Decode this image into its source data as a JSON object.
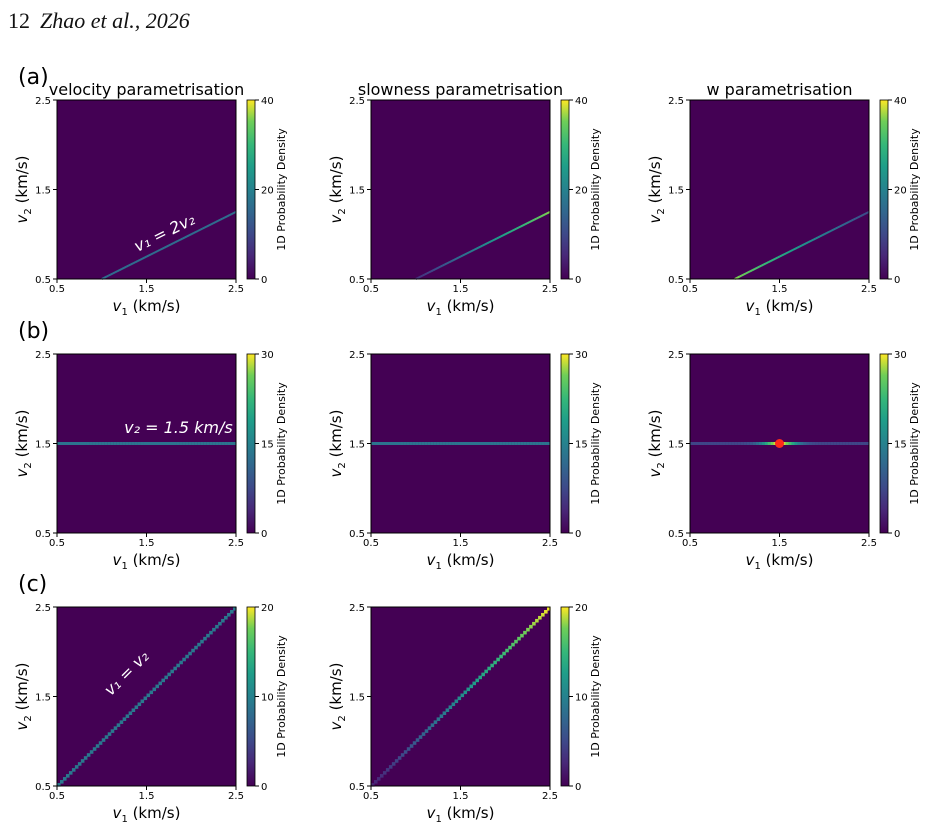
{
  "header": {
    "page_number": "12",
    "authors": "Zhao et al., 2026"
  },
  "row_labels": [
    "(a)",
    "(b)",
    "(c)"
  ],
  "columns": [
    "velocity parametrisation",
    "slowness parametrisation",
    "w parametrisation"
  ],
  "colors": {
    "background": "#440154",
    "viridis_low": "#440154",
    "viridis_high": "#fde725",
    "marker": "#ff2a1a"
  },
  "chart_data": [
    {
      "type": "heatmap",
      "panel": "a-velocity",
      "title": "velocity parametrisation",
      "xlabel": "v₁ (km/s)",
      "ylabel": "v₂ (km/s)",
      "xlim": [
        0.5,
        2.5
      ],
      "ylim": [
        0.5,
        2.5
      ],
      "xticks": [
        "0.5",
        "1.5",
        "2.5"
      ],
      "yticks": [
        "0.5",
        "1.5",
        "2.5"
      ],
      "colorbar": {
        "label": "1D Probability Density",
        "min": 0,
        "max": 40,
        "ticks": [
          "0",
          "20",
          "40"
        ]
      },
      "ridge": {
        "relation": "v1 = 2 v2",
        "from": [
          1.0,
          0.5
        ],
        "to": [
          2.5,
          1.25
        ],
        "density": [
          16,
          16
        ],
        "width": 2
      },
      "annotation": {
        "text": "v₁ = 2v₂",
        "x": 1.4,
        "y": 0.8
      }
    },
    {
      "type": "heatmap",
      "panel": "a-slowness",
      "title": "slowness parametrisation",
      "xlabel": "v₁ (km/s)",
      "ylabel": "v₂ (km/s)",
      "xlim": [
        0.5,
        2.5
      ],
      "ylim": [
        0.5,
        2.5
      ],
      "xticks": [
        "0.5",
        "1.5",
        "2.5"
      ],
      "yticks": [
        "0.5",
        "1.5",
        "2.5"
      ],
      "colorbar": {
        "label": "1D Probability Density",
        "min": 0,
        "max": 40,
        "ticks": [
          "0",
          "20",
          "40"
        ]
      },
      "ridge": {
        "relation": "v1 = 2 v2",
        "from": [
          1.0,
          0.5
        ],
        "to": [
          2.5,
          1.25
        ],
        "density": [
          6,
          36
        ],
        "width": 2
      }
    },
    {
      "type": "heatmap",
      "panel": "a-w",
      "title": "w parametrisation",
      "xlabel": "v₁ (km/s)",
      "ylabel": "v₂ (km/s)",
      "xlim": [
        0.5,
        2.5
      ],
      "ylim": [
        0.5,
        2.5
      ],
      "xticks": [
        "0.5",
        "1.5",
        "2.5"
      ],
      "yticks": [
        "0.5",
        "1.5",
        "2.5"
      ],
      "colorbar": {
        "label": "1D Probability Density",
        "min": 0,
        "max": 40,
        "ticks": [
          "0",
          "20",
          "40"
        ]
      },
      "ridge": {
        "relation": "v1 = 2 v2",
        "from": [
          1.0,
          0.5
        ],
        "to": [
          2.5,
          1.25
        ],
        "density": [
          36,
          10
        ],
        "width": 2
      }
    },
    {
      "type": "heatmap",
      "panel": "b-velocity",
      "xlabel": "v₁ (km/s)",
      "ylabel": "v₂ (km/s)",
      "xlim": [
        0.5,
        2.5
      ],
      "ylim": [
        0.5,
        2.5
      ],
      "xticks": [
        "0.5",
        "1.5",
        "2.5"
      ],
      "yticks": [
        "0.5",
        "1.5",
        "2.5"
      ],
      "colorbar": {
        "label": "1D Probability Density",
        "min": 0,
        "max": 30,
        "ticks": [
          "0",
          "15",
          "30"
        ]
      },
      "ridge": {
        "relation": "v2 = 1.5",
        "from": [
          0.5,
          1.5
        ],
        "to": [
          2.5,
          1.5
        ],
        "density": [
          13,
          13
        ],
        "width": 3
      },
      "annotation": {
        "text": "v₂ = 1.5 km/s",
        "x": 1.25,
        "y": 1.62
      }
    },
    {
      "type": "heatmap",
      "panel": "b-slowness",
      "xlabel": "v₁ (km/s)",
      "ylabel": "v₂ (km/s)",
      "xlim": [
        0.5,
        2.5
      ],
      "ylim": [
        0.5,
        2.5
      ],
      "xticks": [
        "0.5",
        "1.5",
        "2.5"
      ],
      "yticks": [
        "0.5",
        "1.5",
        "2.5"
      ],
      "colorbar": {
        "label": "1D Probability Density",
        "min": 0,
        "max": 30,
        "ticks": [
          "0",
          "15",
          "30"
        ]
      },
      "ridge": {
        "relation": "v2 = 1.5",
        "from": [
          0.5,
          1.5
        ],
        "to": [
          2.5,
          1.5
        ],
        "density": [
          13,
          13
        ],
        "width": 3
      }
    },
    {
      "type": "heatmap",
      "panel": "b-w",
      "xlabel": "v₁ (km/s)",
      "ylabel": "v₂ (km/s)",
      "xlim": [
        0.5,
        2.5
      ],
      "ylim": [
        0.5,
        2.5
      ],
      "xticks": [
        "0.5",
        "1.5",
        "2.5"
      ],
      "yticks": [
        "0.5",
        "1.5",
        "2.5"
      ],
      "colorbar": {
        "label": "1D Probability Density",
        "min": 0,
        "max": 30,
        "ticks": [
          "0",
          "15",
          "30"
        ]
      },
      "ridge": {
        "relation": "v2 = 1.5",
        "from": [
          0.5,
          1.5
        ],
        "to": [
          2.5,
          1.5
        ],
        "density": [
          7,
          7
        ],
        "peak": {
          "x": 1.5,
          "value": 30,
          "spread": 0.2
        },
        "width": 3
      },
      "marker": {
        "x": 1.5,
        "y": 1.5
      }
    },
    {
      "type": "heatmap",
      "panel": "c-velocity",
      "xlabel": "v₁ (km/s)",
      "ylabel": "v₂ (km/s)",
      "xlim": [
        0.5,
        2.5
      ],
      "ylim": [
        0.5,
        2.5
      ],
      "xticks": [
        "0.5",
        "1.5",
        "2.5"
      ],
      "yticks": [
        "0.5",
        "1.5",
        "2.5"
      ],
      "colorbar": {
        "label": "1D Probability Density",
        "min": 0,
        "max": 20,
        "ticks": [
          "0",
          "10",
          "20"
        ]
      },
      "ridge": {
        "relation": "v1 = v2",
        "from": [
          0.5,
          0.5
        ],
        "to": [
          2.5,
          2.5
        ],
        "density": [
          9,
          9
        ],
        "width": 4,
        "stepped": true
      },
      "annotation": {
        "text": "v₁ = v₂",
        "x": 1.1,
        "y": 1.5
      }
    },
    {
      "type": "heatmap",
      "panel": "c-slowness",
      "xlabel": "v₁ (km/s)",
      "ylabel": "v₂ (km/s)",
      "xlim": [
        0.5,
        2.5
      ],
      "ylim": [
        0.5,
        2.5
      ],
      "xticks": [
        "0.5",
        "1.5",
        "2.5"
      ],
      "yticks": [
        "0.5",
        "1.5",
        "2.5"
      ],
      "colorbar": {
        "label": "1D Probability Density",
        "min": 0,
        "max": 20,
        "ticks": [
          "0",
          "10",
          "20"
        ]
      },
      "ridge": {
        "relation": "v1 = v2",
        "from": [
          0.5,
          0.5
        ],
        "to": [
          2.5,
          2.5
        ],
        "density": [
          2,
          20
        ],
        "width": 4,
        "stepped": true
      }
    }
  ]
}
